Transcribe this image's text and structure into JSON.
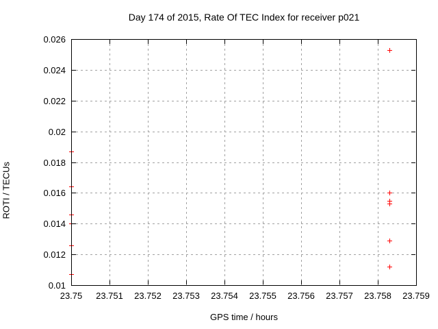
{
  "chart_data": {
    "type": "scatter",
    "title": "Day 174 of 2015, Rate Of TEC Index for receiver p021",
    "xlabel": "GPS time / hours",
    "ylabel": "ROTI / TECUs",
    "xlim": [
      23.75,
      23.759
    ],
    "ylim": [
      0.01,
      0.026
    ],
    "x_ticks": [
      23.75,
      23.751,
      23.752,
      23.753,
      23.754,
      23.755,
      23.756,
      23.757,
      23.758,
      23.759
    ],
    "x_tick_labels": [
      "23.75",
      "23.751",
      "23.752",
      "23.753",
      "23.754",
      "23.755",
      "23.756",
      "23.757",
      "23.758",
      "23.759"
    ],
    "y_ticks": [
      0.01,
      0.012,
      0.014,
      0.016,
      0.018,
      0.02,
      0.022,
      0.024,
      0.026
    ],
    "y_tick_labels": [
      "0.01",
      "0.012",
      "0.014",
      "0.016",
      "0.018",
      "0.02",
      "0.022",
      "0.024",
      "0.026"
    ],
    "grid": true,
    "legend": "none",
    "marker": "plus",
    "marker_color": "#ff0000",
    "grid_color": "#a0a0a0",
    "axis_color": "#000000",
    "background_color": "#ffffff",
    "series": [
      {
        "name": "ROTI",
        "points": [
          {
            "x": 23.75,
            "y": 0.0187
          },
          {
            "x": 23.75,
            "y": 0.0164
          },
          {
            "x": 23.75,
            "y": 0.0146
          },
          {
            "x": 23.75,
            "y": 0.014
          },
          {
            "x": 23.75,
            "y": 0.0126
          },
          {
            "x": 23.75,
            "y": 0.0107
          },
          {
            "x": 23.7583,
            "y": 0.0253
          },
          {
            "x": 23.7583,
            "y": 0.016
          },
          {
            "x": 23.7583,
            "y": 0.0155
          },
          {
            "x": 23.7583,
            "y": 0.0153
          },
          {
            "x": 23.7583,
            "y": 0.0129
          },
          {
            "x": 23.7583,
            "y": 0.0112
          }
        ]
      }
    ]
  }
}
